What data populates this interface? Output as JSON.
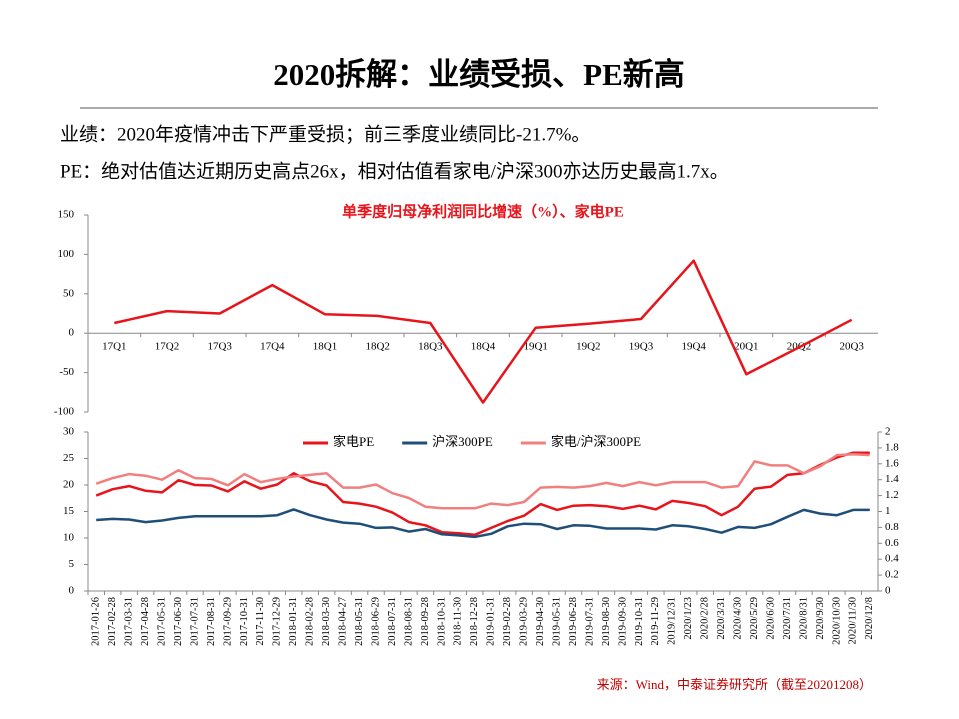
{
  "header": {
    "title": "2020拆解：业绩受损、PE新高"
  },
  "bullets": [
    "业绩：2020年疫情冲击下严重受损；前三季度业绩同比-21.7%。",
    "PE：绝对估值达近期历史高点26x，相对估值看家电/沪深300亦达历史最高1.7x。"
  ],
  "chart_data": [
    {
      "type": "line",
      "title": "单季度归母净利润同比增速（%）、家电PE",
      "categories": [
        "17Q1",
        "17Q2",
        "17Q3",
        "17Q4",
        "18Q1",
        "18Q2",
        "18Q3",
        "18Q4",
        "19Q1",
        "19Q2",
        "19Q3",
        "19Q4",
        "20Q1",
        "20Q2",
        "20Q3"
      ],
      "series": [
        {
          "color": "#e8141b",
          "values": [
            13,
            28,
            25,
            61,
            24,
            22,
            13,
            -88,
            7,
            12,
            18,
            92,
            -52,
            -18,
            17
          ]
        }
      ],
      "ylim": [
        -100,
        150
      ],
      "yticks": [
        -100,
        -50,
        0,
        50,
        100,
        150
      ],
      "grid": false
    },
    {
      "type": "line",
      "categories": [
        "2017-01-26",
        "2017-02-28",
        "2017-03-31",
        "2017-04-28",
        "2017-05-31",
        "2017-06-30",
        "2017-07-31",
        "2017-08-31",
        "2017-09-29",
        "2017-10-31",
        "2017-11-30",
        "2017-12-29",
        "2018-01-31",
        "2018-02-28",
        "2018-03-30",
        "2018-04-27",
        "2018-05-31",
        "2018-06-29",
        "2018-07-31",
        "2018-08-31",
        "2018-09-28",
        "2018-10-31",
        "2018-11-30",
        "2018-12-28",
        "2019-01-31",
        "2019-02-28",
        "2019-03-29",
        "2019-04-30",
        "2019-05-31",
        "2019-06-28",
        "2019-07-31",
        "2019-08-30",
        "2019-09-30",
        "2019-10-31",
        "2019-11-29",
        "2019/12/31",
        "2020/1/23",
        "2020/2/28",
        "2020/3/31",
        "2020/4/30",
        "2020/5/29",
        "2020/6/30",
        "2020/7/31",
        "2020/8/31",
        "2020/9/30",
        "2020/10/30",
        "2020/11/30",
        "2020/12/8"
      ],
      "series": [
        {
          "name": "家电PE",
          "color": "#e8141b",
          "values": [
            18,
            19.2,
            19.8,
            18.9,
            18.6,
            20.9,
            20.0,
            19.9,
            18.8,
            20.7,
            19.3,
            20.1,
            22.2,
            20.7,
            19.9,
            16.8,
            16.5,
            15.9,
            14.8,
            13.0,
            12.4,
            11.1,
            10.9,
            10.6,
            11.9,
            13.2,
            14.2,
            16.4,
            15.3,
            16.1,
            16.2,
            16.0,
            15.5,
            16.1,
            15.4,
            17.0,
            16.6,
            16.0,
            14.3,
            15.9,
            19.3,
            19.7,
            21.9,
            22.2,
            23.8,
            25.2,
            26.1,
            26.1
          ]
        },
        {
          "name": "沪深300PE",
          "color": "#1f4e79",
          "values": [
            13.4,
            13.6,
            13.5,
            13.0,
            13.3,
            13.8,
            14.1,
            14.1,
            14.1,
            14.1,
            14.1,
            14.3,
            15.4,
            14.3,
            13.5,
            12.9,
            12.7,
            11.9,
            12.0,
            11.2,
            11.7,
            10.7,
            10.5,
            10.2,
            10.8,
            12.2,
            12.7,
            12.6,
            11.7,
            12.4,
            12.3,
            11.8,
            11.8,
            11.8,
            11.6,
            12.4,
            12.2,
            11.7,
            11.0,
            12.1,
            11.9,
            12.6,
            14.0,
            15.3,
            14.6,
            14.3,
            15.3,
            15.3
          ]
        },
        {
          "name": "家电/沪深300PE",
          "color": "#f08080",
          "axis": "y2",
          "values": [
            1.35,
            1.42,
            1.47,
            1.45,
            1.4,
            1.52,
            1.42,
            1.41,
            1.33,
            1.47,
            1.37,
            1.41,
            1.44,
            1.46,
            1.48,
            1.3,
            1.3,
            1.34,
            1.23,
            1.17,
            1.06,
            1.04,
            1.04,
            1.04,
            1.1,
            1.08,
            1.12,
            1.3,
            1.31,
            1.3,
            1.32,
            1.36,
            1.32,
            1.37,
            1.33,
            1.37,
            1.37,
            1.37,
            1.3,
            1.32,
            1.63,
            1.58,
            1.58,
            1.48,
            1.57,
            1.71,
            1.72,
            1.71
          ]
        }
      ],
      "ylim": [
        0,
        30
      ],
      "yticks": [
        0,
        5,
        10,
        15,
        20,
        25,
        30
      ],
      "y2lim": [
        0,
        2
      ],
      "y2ticks": [
        0,
        0.2,
        0.4,
        0.6,
        0.8,
        1,
        1.2,
        1.4,
        1.6,
        1.8,
        2
      ],
      "grid": false,
      "legend": "top"
    }
  ],
  "source": "来源：Wind，中泰证券研究所（截至20201208）"
}
